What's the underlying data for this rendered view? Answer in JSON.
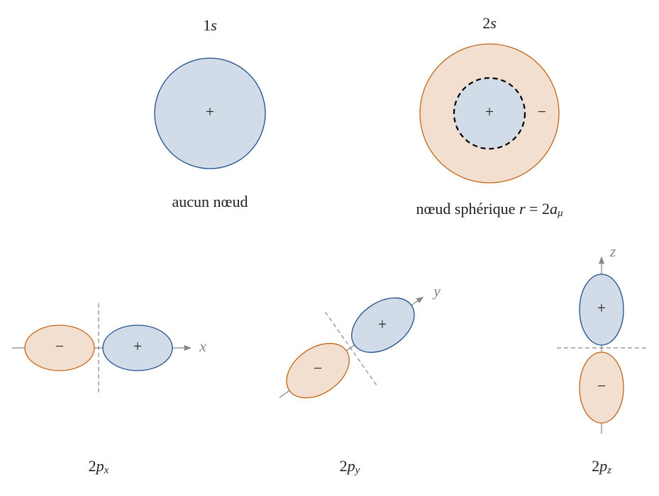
{
  "orbitals": [
    {
      "label": {
        "number": "1",
        "letter": "s"
      },
      "signs": [
        "+"
      ],
      "caption": "aucun nœud"
    },
    {
      "label": {
        "number": "2",
        "letter": "s"
      },
      "signs": [
        "+",
        "−"
      ],
      "caption": {
        "text": "nœud sphérique",
        "variable": "r",
        "operator": "=",
        "coefficient": "2",
        "symbol": "a",
        "subscript": "μ"
      }
    },
    {
      "label": {
        "number": "2",
        "letter": "p",
        "subscript": "x"
      },
      "signs": [
        "−",
        "+"
      ],
      "axis": "x"
    },
    {
      "label": {
        "number": "2",
        "letter": "p",
        "subscript": "y"
      },
      "signs": [
        "−",
        "+"
      ],
      "axis": "y"
    },
    {
      "label": {
        "number": "2",
        "letter": "p",
        "subscript": "z"
      },
      "signs": [
        "+",
        "−"
      ],
      "axis": "z"
    }
  ]
}
